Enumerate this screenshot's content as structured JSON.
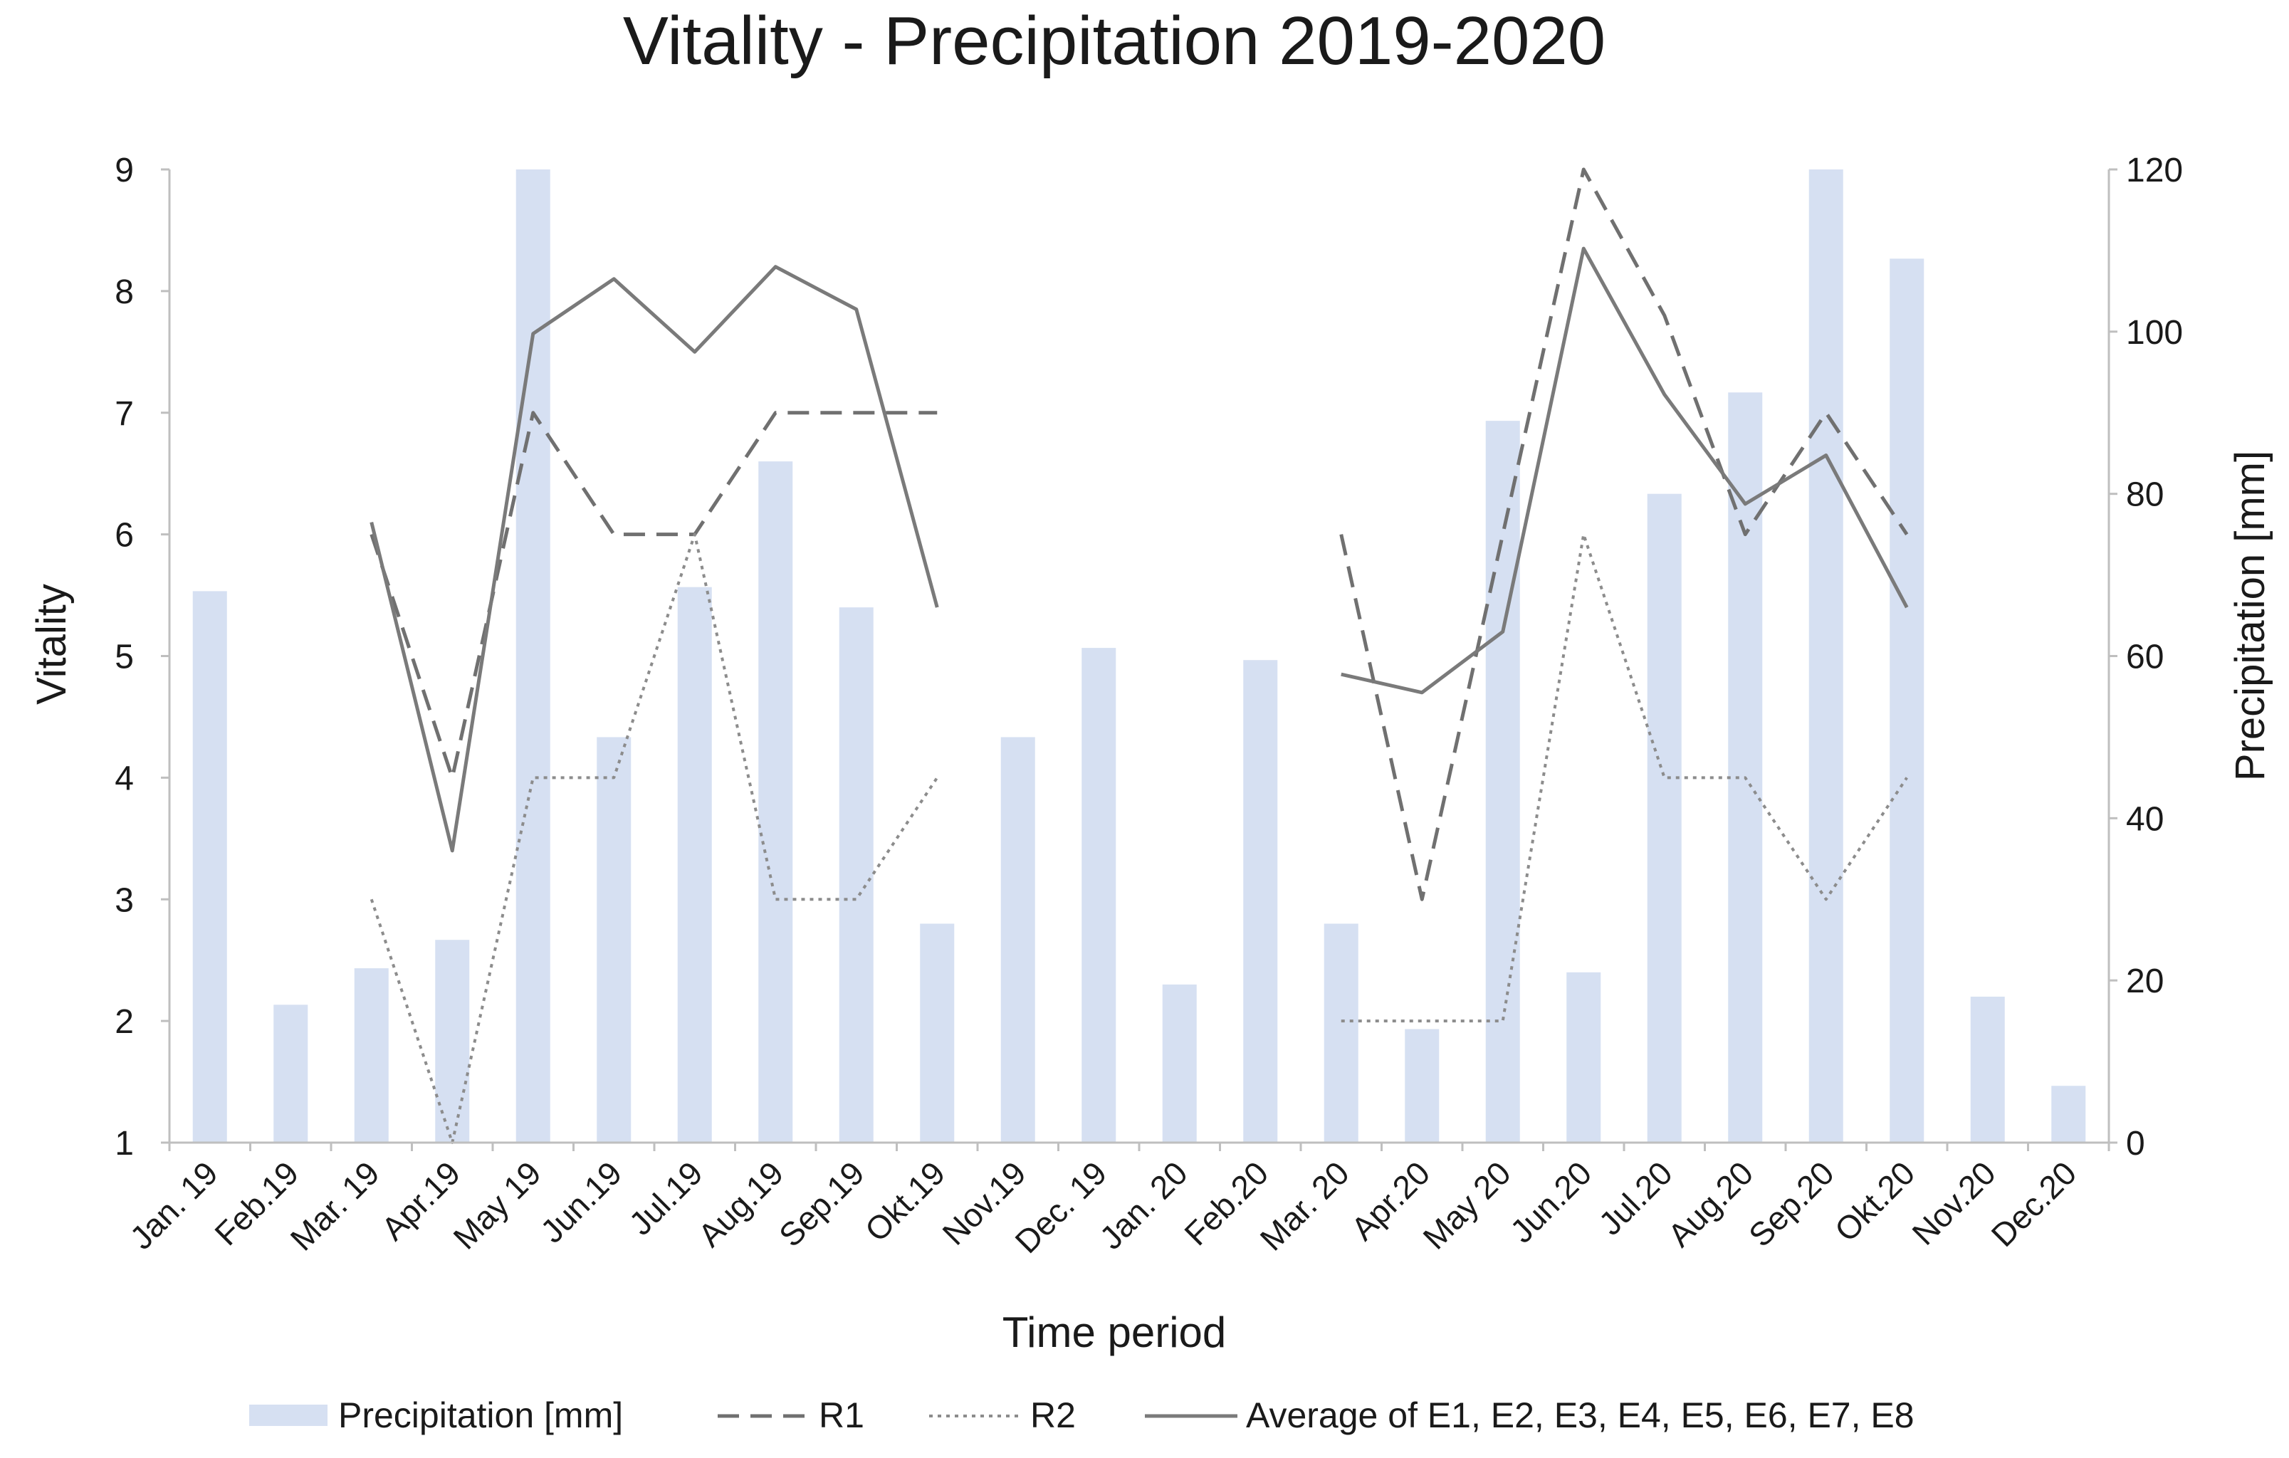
{
  "chart_data": {
    "type": "bar",
    "title": "Vitality - Precipitation  2019-2020",
    "xlabel": "Time period",
    "ylabel": "Vitality",
    "y2label": "Precipitation [mm]",
    "ylim": [
      1,
      9
    ],
    "y2lim": [
      0,
      120
    ],
    "yticks": [
      "1",
      "2",
      "3",
      "4",
      "5",
      "6",
      "7",
      "8",
      "9"
    ],
    "y2ticks": [
      "0",
      "20",
      "40",
      "60",
      "80",
      "100",
      "120"
    ],
    "categories": [
      "Jan. 19",
      "Feb.19",
      "Mar. 19",
      "Apr.19",
      "May 19",
      "Jun.19",
      "Jul.19",
      "Aug.19",
      "Sep.19",
      "Okt.19",
      "Nov.19",
      "Dec. 19",
      "Jan. 20",
      "Feb.20",
      "Mar. 20",
      "Apr.20",
      "May 20",
      "Jun.20",
      "Jul.20",
      "Aug.20",
      "Sep.20",
      "Okt.20",
      "Nov.20",
      "Dec.20"
    ],
    "series": [
      {
        "name": "Precipitation [mm]",
        "kind": "bar",
        "axis": "right",
        "color": "#d6e0f2",
        "values": [
          68,
          17,
          21.5,
          25,
          120,
          50,
          68.5,
          84,
          66,
          27,
          50,
          61,
          19.5,
          59.5,
          27,
          14,
          89,
          21,
          80,
          92.5,
          120,
          109,
          18,
          7
        ]
      },
      {
        "name": "R1",
        "kind": "line",
        "axis": "left",
        "dash": "dashed",
        "color": "#707070",
        "values": [
          null,
          null,
          6,
          4,
          7,
          6,
          6,
          7,
          7,
          7,
          null,
          null,
          null,
          null,
          6,
          3,
          6,
          9,
          7.8,
          6,
          7,
          6,
          null,
          null
        ]
      },
      {
        "name": "R2",
        "kind": "line",
        "axis": "left",
        "dash": "dotted",
        "color": "#8c8c8c",
        "values": [
          null,
          null,
          3,
          1,
          4,
          4,
          6,
          3,
          3,
          4,
          null,
          null,
          null,
          null,
          2,
          2,
          2,
          6,
          4,
          4,
          3,
          4,
          null,
          null
        ]
      },
      {
        "name": "Average of E1, E2, E3, E4, E5, E6, E7, E8",
        "kind": "line",
        "axis": "left",
        "dash": "solid",
        "color": "#7a7a7a",
        "values": [
          null,
          null,
          6.1,
          3.4,
          7.65,
          8.1,
          7.5,
          8.2,
          7.85,
          5.4,
          null,
          null,
          null,
          null,
          4.85,
          4.7,
          5.2,
          8.35,
          7.15,
          6.25,
          6.65,
          5.4,
          null,
          null
        ]
      }
    ],
    "legend_position": "bottom"
  }
}
